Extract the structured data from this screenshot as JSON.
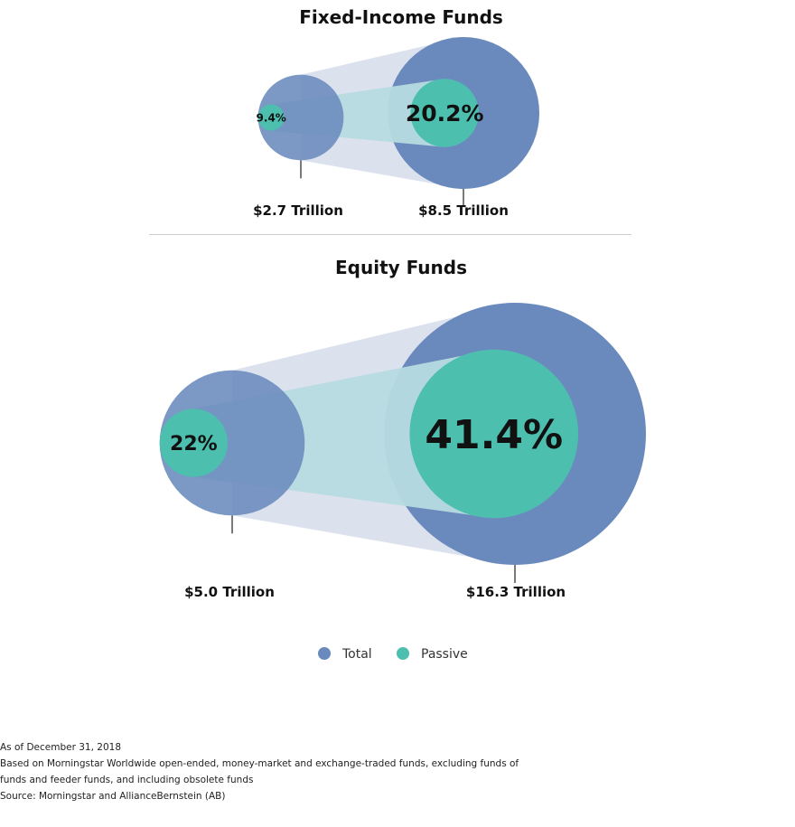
{
  "colors": {
    "total": "#6a8abd",
    "passive": "#4dbfae",
    "funnel_total": "#dbe2ee",
    "funnel_passive": "#b6dbdf",
    "divider": "#cccccc",
    "text": "#111111"
  },
  "chart_data": [
    {
      "type": "bubble-comparison",
      "title": "Fixed-Income Funds",
      "points": [
        {
          "total_label": "$2.7 Trillion",
          "total_trillion": 2.7,
          "passive_share_label": "9.4%",
          "passive_share": 9.4
        },
        {
          "total_label": "$8.5 Trillion",
          "total_trillion": 8.5,
          "passive_share_label": "20.2%",
          "passive_share": 20.2
        }
      ]
    },
    {
      "type": "bubble-comparison",
      "title": "Equity Funds",
      "points": [
        {
          "total_label": "$5.0 Trillion",
          "total_trillion": 5.0,
          "passive_share_label": "22%",
          "passive_share": 22
        },
        {
          "total_label": "$16.3 Trillion",
          "total_trillion": 16.3,
          "passive_share_label": "41.4%",
          "passive_share": 41.4
        }
      ]
    }
  ],
  "legend": {
    "total": "Total",
    "passive": "Passive"
  },
  "notes": {
    "line1": "As of December 31, 2018",
    "line2": "Based on Morningstar Worldwide open-ended, money-market and exchange-traded funds, excluding funds of",
    "line3": "funds and feeder funds, and including obsolete funds",
    "line4": "Source: Morningstar and AllianceBernstein (AB)"
  }
}
